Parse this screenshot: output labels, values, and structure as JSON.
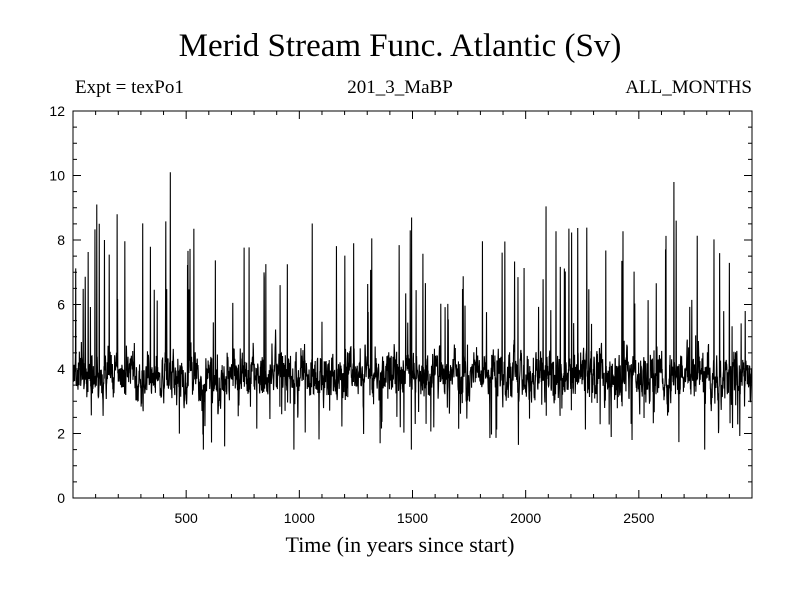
{
  "chart_data": {
    "type": "line",
    "title": "Merid Stream Func. Atlantic (Sv)",
    "subtitle_left": "Expt = texPo1",
    "subtitle_center": "201_3_MaBP",
    "subtitle_right": "ALL_MONTHS",
    "xlabel": "Time (in years since start)",
    "ylabel": "",
    "xlim": [
      0,
      3000
    ],
    "ylim": [
      0,
      12
    ],
    "xticks": [
      500,
      1000,
      1500,
      2000,
      2500
    ],
    "xtick_labels": [
      "500",
      "1000",
      "1500",
      "2000",
      "2500"
    ],
    "yticks": [
      0,
      2,
      4,
      6,
      8,
      10,
      12
    ],
    "ytick_labels": [
      "0",
      "2",
      "4",
      "6",
      "8",
      "10",
      "12"
    ],
    "grid": false,
    "line_color": "#000000",
    "series": [
      {
        "x_start": 1,
        "x_step": 1,
        "n_points": 2999,
        "baseline": 3.8,
        "typical_range": [
          2.0,
          6.0
        ],
        "min": 1.5,
        "max": 10.1,
        "peaks": [
          {
            "x": 105,
            "y": 9.1
          },
          {
            "x": 195,
            "y": 8.8
          },
          {
            "x": 430,
            "y": 10.1
          },
          {
            "x": 1240,
            "y": 7.9
          },
          {
            "x": 1490,
            "y": 8.3
          },
          {
            "x": 2655,
            "y": 9.8
          },
          {
            "x": 2665,
            "y": 8.6
          }
        ],
        "troughs": [
          {
            "x": 670,
            "y": 1.6
          },
          {
            "x": 1495,
            "y": 1.5
          },
          {
            "x": 2470,
            "y": 1.8
          }
        ]
      }
    ]
  }
}
